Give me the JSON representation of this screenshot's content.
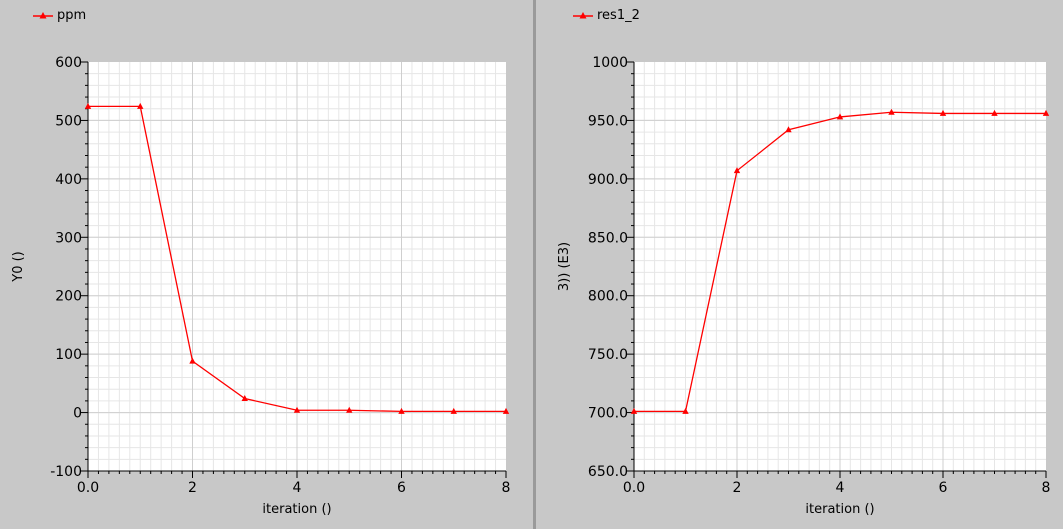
{
  "colors": {
    "series": "#ff0000",
    "plot_bg": "#ffffff",
    "grid_minor": "#e6e6e6",
    "grid_major": "#cfcfcf",
    "panel_bg": "#c8c8c8"
  },
  "chart_data": [
    {
      "type": "line",
      "legend": "ppm",
      "xlabel": "iteration ()",
      "ylabel": "Y0 ()",
      "xlim": [
        0,
        8
      ],
      "ylim": [
        -100,
        600
      ],
      "xticks": [
        "0.0",
        "2",
        "4",
        "6",
        "8"
      ],
      "yticks": [
        "-100",
        "0",
        "100",
        "200",
        "300",
        "400",
        "500",
        "600"
      ],
      "series": [
        {
          "x": [
            0,
            1,
            2,
            3,
            4,
            5,
            6,
            7,
            8
          ],
          "y": [
            524,
            524,
            88,
            24,
            4,
            4,
            2,
            2,
            2
          ]
        }
      ]
    },
    {
      "type": "line",
      "legend": "res1_2",
      "xlabel": "iteration ()",
      "ylabel": "3)) (E3)",
      "xlim": [
        0,
        8
      ],
      "ylim": [
        650,
        1000
      ],
      "xticks": [
        "0.0",
        "2",
        "4",
        "6",
        "8"
      ],
      "yticks": [
        "650.0",
        "700.0",
        "750.0",
        "800.0",
        "850.0",
        "900.0",
        "950.0",
        "1000"
      ],
      "series": [
        {
          "x": [
            0,
            1,
            2,
            3,
            4,
            5,
            6,
            7,
            8
          ],
          "y": [
            701,
            701,
            907,
            942,
            953,
            957,
            956,
            956,
            956
          ]
        }
      ]
    }
  ]
}
